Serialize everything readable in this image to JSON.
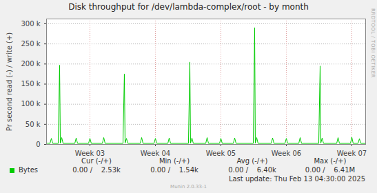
{
  "chart_data": {
    "type": "line",
    "title": "Disk throughput for /dev/lambda-complex/root - by month",
    "y_label": "Pr second read (-) / write (+)",
    "x": [
      2.337,
      2.39,
      2.411,
      2.432,
      2.516,
      2.537,
      2.548,
      2.569,
      2.59,
      2.769,
      2.79,
      2.811,
      2.979,
      3.0,
      3.021,
      3.19,
      3.211,
      3.232,
      3.505,
      3.526,
      3.537,
      3.558,
      3.579,
      3.769,
      3.79,
      3.811,
      3.979,
      4.0,
      4.021,
      4.19,
      4.211,
      4.232,
      4.505,
      4.526,
      4.537,
      4.558,
      4.579,
      4.769,
      4.79,
      4.811,
      4.979,
      5.0,
      5.021,
      5.19,
      5.211,
      5.232,
      5.495,
      5.516,
      5.526,
      5.547,
      5.568,
      5.769,
      5.79,
      5.811,
      5.979,
      6.0,
      6.021,
      6.19,
      6.211,
      6.232,
      6.495,
      6.516,
      6.526,
      6.547,
      6.568,
      6.769,
      6.79,
      6.811,
      6.979,
      7.0,
      7.021,
      7.095,
      7.116,
      7.137,
      7.211
    ],
    "series": [
      {
        "name": "Bytes",
        "color": "#00cc00",
        "values": [
          3000,
          2500,
          15000,
          2500,
          2500,
          197000,
          3000,
          17000,
          2500,
          2500,
          16000,
          2500,
          2500,
          15000,
          2500,
          2500,
          17000,
          2500,
          2500,
          175000,
          3000,
          15000,
          2500,
          2500,
          17000,
          2500,
          2500,
          15000,
          2500,
          2500,
          16000,
          2500,
          2500,
          205000,
          3000,
          16000,
          2500,
          2500,
          17000,
          2500,
          2500,
          15000,
          2500,
          2500,
          16000,
          2500,
          2500,
          290000,
          3000,
          17000,
          2500,
          2500,
          16000,
          2500,
          2500,
          15000,
          2500,
          2500,
          17000,
          2500,
          2500,
          195000,
          3000,
          16000,
          2500,
          2500,
          17000,
          2500,
          2500,
          18000,
          2500,
          2500,
          14000,
          2500,
          2500
        ],
        "stats": [
          "0.00 /    2.53k",
          "0.00 /    1.54k",
          "0.00 /    6.40k",
          "0.00 /    6.41M"
        ]
      }
    ],
    "stats_headers": [
      "Cur (-/+)",
      "Min (-/+)",
      "Avg (-/+)",
      "Max (-/+)"
    ],
    "xlim": [
      2.337,
      7.211
    ],
    "xticks": [
      {
        "value": 3,
        "label": "Week 03"
      },
      {
        "value": 4,
        "label": "Week 04"
      },
      {
        "value": 5,
        "label": "Week 05"
      },
      {
        "value": 6,
        "label": "Week 06"
      },
      {
        "value": 7,
        "label": "Week 07"
      }
    ],
    "ylim": [
      0,
      312000
    ],
    "yticks": [
      0,
      {
        "value": 50000,
        "label": "50 k"
      },
      {
        "value": 100000,
        "label": "100 k"
      },
      {
        "value": 150000,
        "label": "150 k"
      },
      {
        "value": 200000,
        "label": "200 k"
      },
      {
        "value": 250000,
        "label": "250 k"
      },
      {
        "value": 300000,
        "label": "300 k"
      }
    ],
    "grid": true,
    "footer": "Last update: Thu Feb 13 04:30:00 2025",
    "watermark": "Munin 2.0.33-1",
    "side_text": "RRDTOOL / TOBI OETIKER"
  }
}
